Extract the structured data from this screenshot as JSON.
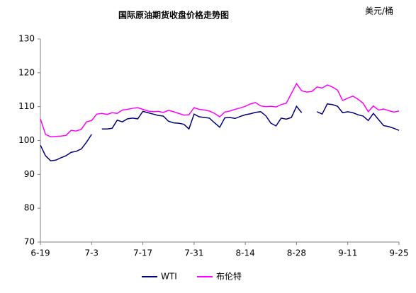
{
  "chart_data": {
    "type": "line",
    "title": "国际原油期货收盘价格走势图",
    "unit_label": "美元/桶",
    "categories": [
      "6-19",
      null,
      null,
      null,
      null,
      null,
      null,
      null,
      null,
      null,
      "7-3",
      null,
      null,
      null,
      null,
      null,
      null,
      null,
      null,
      null,
      "7-17",
      null,
      null,
      null,
      null,
      null,
      null,
      null,
      null,
      null,
      "7-31",
      null,
      null,
      null,
      null,
      null,
      null,
      null,
      null,
      null,
      "8-14",
      null,
      null,
      null,
      null,
      null,
      null,
      null,
      null,
      null,
      "8-28",
      null,
      null,
      null,
      null,
      null,
      null,
      null,
      null,
      null,
      "9-11",
      null,
      null,
      null,
      null,
      null,
      null,
      null,
      null,
      null,
      "9-25"
    ],
    "series": [
      {
        "name": "WTI",
        "color": "#000080",
        "values": [
          98.6,
          95.5,
          94,
          94.2,
          94.9,
          95.5,
          96.5,
          96.8,
          97.5,
          99.5,
          101.8,
          null,
          103.4,
          103.4,
          103.6,
          106.0,
          105.5,
          106.4,
          106.6,
          106.4,
          108.6,
          108.2,
          107.8,
          107.4,
          107.2,
          105.7,
          105.2,
          105.1,
          104.8,
          103.4,
          107.8,
          107.0,
          106.8,
          106.6,
          105.2,
          103.9,
          106.7,
          106.8,
          106.5,
          107.1,
          107.6,
          107.9,
          108.3,
          108.5,
          107.3,
          105.1,
          104.3,
          106.6,
          106.3,
          106.8,
          110.1,
          108.2,
          null,
          null,
          108.5,
          107.8,
          110.8,
          110.6,
          110.1,
          108.2,
          108.5,
          108.2,
          107.6,
          107.2,
          105.9,
          108.0,
          106.2,
          104.4,
          104.1,
          103.6,
          103.0
        ]
      },
      {
        "name": "布伦特",
        "color": "#ff00ff",
        "values": [
          106.4,
          101.8,
          101.1,
          101.2,
          101.3,
          101.5,
          103,
          102.8,
          103.3,
          105.5,
          105.9,
          107.8,
          108.0,
          107.7,
          108.2,
          108.0,
          109.0,
          109.2,
          109.5,
          109.7,
          109.2,
          108.7,
          108.5,
          108.6,
          108.3,
          108.9,
          108.5,
          108.0,
          107.5,
          107.6,
          109.7,
          109.2,
          109.0,
          108.7,
          108.0,
          107.0,
          108.4,
          108.7,
          109.2,
          109.6,
          110.1,
          110.8,
          111.2,
          110.2,
          110.0,
          110.1,
          109.9,
          110.6,
          111.0,
          113.9,
          116.8,
          114.7,
          114.3,
          114.5,
          115.8,
          115.5,
          116.4,
          115.8,
          114.9,
          111.8,
          112.5,
          113.1,
          112.2,
          111.0,
          108.5,
          110.2,
          109.0,
          109.3,
          108.8,
          108.4,
          108.7
        ]
      }
    ],
    "ylim": [
      70,
      130
    ],
    "yticks": [
      70,
      80,
      90,
      100,
      110,
      120,
      130
    ],
    "grid": false,
    "legend": "bottom"
  }
}
